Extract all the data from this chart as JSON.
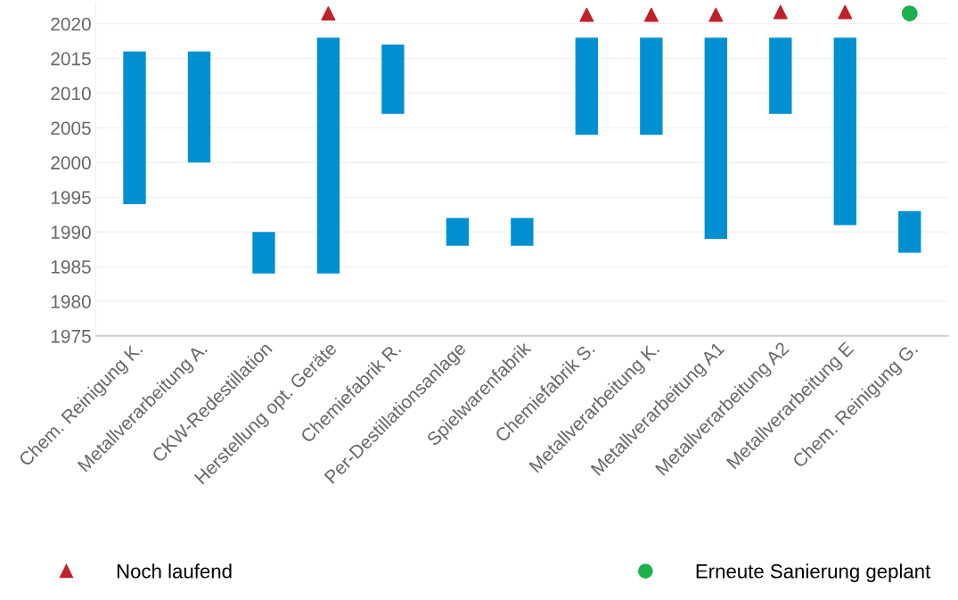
{
  "chart_data": {
    "type": "bar",
    "categories": [
      "Chem. Reinigung K.",
      "Metallverarbeitung A.",
      "CKW-Redestillation",
      "Herstellung opt. Geräte",
      "Chemiefabrik R.",
      "Per-Destillationsanlage",
      "Spielwarenfabrik",
      "Chemiefabrik S.",
      "Metallverarbeitung K.",
      "Metallverarbeitung A1",
      "Metallverarbeitung A2",
      "Metallverarbeitung E",
      "Chem. Reinigung G."
    ],
    "series": [
      {
        "color": "#0090d1",
        "base": [
          1994,
          2000,
          1984,
          1984,
          2007,
          1988,
          1988,
          2004,
          2004,
          1989,
          2007,
          1991,
          1987
        ],
        "values": [
          22,
          16,
          6,
          34,
          10,
          4,
          4,
          14,
          14,
          29,
          11,
          27,
          6
        ]
      },
      {
        "type": "scatter",
        "name": "Noch laufend",
        "color": "#c0202a",
        "marker": "triangle",
        "x": [
          "Herstellung opt. Geräte",
          "Chemiefabrik S.",
          "Metallverarbeitung K.",
          "Metallverarbeitung A1",
          "Metallverarbeitung A2",
          "Metallverarbeitung E"
        ],
        "values": [
          2021.5,
          2021.3,
          2021.3,
          2021.3,
          2021.7,
          2021.7
        ]
      },
      {
        "type": "scatter",
        "name": "Erneute Sanierung geplant",
        "color": "#1db04f",
        "marker": "circle",
        "x": [
          "Chem. Reinigung G."
        ],
        "values": [
          2021.5
        ]
      }
    ],
    "ylim": [
      1975,
      2023
    ],
    "yticks": [
      1975,
      1980,
      1985,
      1990,
      1995,
      2000,
      2005,
      2010,
      2015,
      2020
    ],
    "grid": "y",
    "legend": "bottom"
  }
}
